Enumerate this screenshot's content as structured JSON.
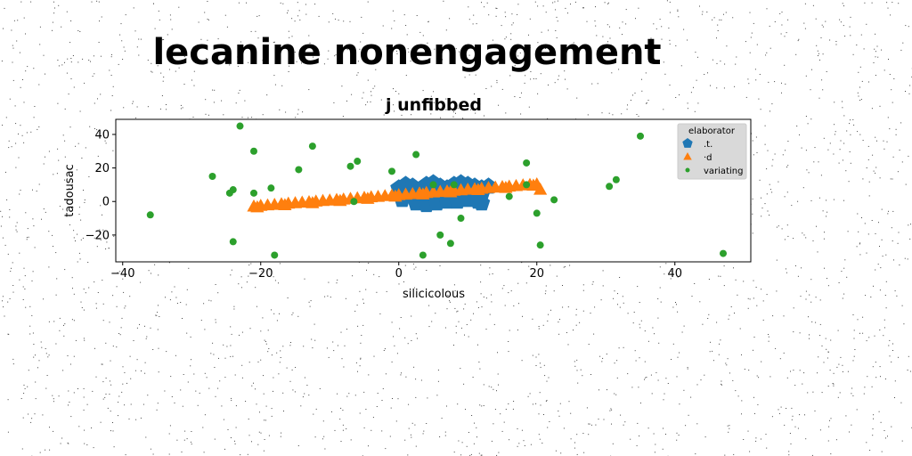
{
  "figure": {
    "title": "lecanine nonengagement"
  },
  "chart_data": {
    "type": "scatter",
    "title": "j unfibbed",
    "xlabel": "silicicolous",
    "ylabel": "tadousac",
    "xlim": [
      -41,
      51
    ],
    "ylim": [
      -36,
      49
    ],
    "xticks": [
      -40,
      -20,
      0,
      20,
      40
    ],
    "yticks": [
      -20,
      0,
      20,
      40
    ],
    "grid": false,
    "legend": {
      "title": "elaborator",
      "placement": "upper right"
    },
    "series": [
      {
        "name": ".t.",
        "marker": "pentagon",
        "color": "#1f77b4",
        "points": [
          [
            0,
            8
          ],
          [
            1,
            10
          ],
          [
            2,
            9
          ],
          [
            3,
            7
          ],
          [
            4,
            10
          ],
          [
            5,
            11
          ],
          [
            6,
            9
          ],
          [
            7,
            8
          ],
          [
            8,
            10
          ],
          [
            9,
            11
          ],
          [
            10,
            10
          ],
          [
            11,
            9
          ],
          [
            12,
            8
          ],
          [
            13,
            9
          ],
          [
            1,
            4
          ],
          [
            2,
            4
          ],
          [
            3,
            3
          ],
          [
            4,
            4
          ],
          [
            5,
            3
          ],
          [
            6,
            4
          ],
          [
            7,
            4
          ],
          [
            8,
            5
          ],
          [
            9,
            5
          ],
          [
            10,
            4
          ],
          [
            11,
            5
          ],
          [
            12,
            4
          ],
          [
            0.5,
            1
          ],
          [
            2.5,
            -1
          ],
          [
            4,
            -2
          ],
          [
            5.5,
            -1
          ],
          [
            7,
            0
          ],
          [
            8.5,
            0
          ],
          [
            10,
            1
          ],
          [
            11.5,
            0
          ],
          [
            12,
            -1
          ]
        ]
      },
      {
        "name": "·d",
        "marker": "triangle",
        "color": "#ff7f0e",
        "points": [
          [
            -21,
            -3
          ],
          [
            -20,
            -2.6
          ],
          [
            -19,
            -2.3
          ],
          [
            -18,
            -2
          ],
          [
            -17,
            -1.6
          ],
          [
            -16,
            -1.3
          ],
          [
            -15,
            -1
          ],
          [
            -14,
            -0.7
          ],
          [
            -13,
            -0.4
          ],
          [
            -12,
            0
          ],
          [
            -11,
            0.3
          ],
          [
            -10,
            0.6
          ],
          [
            -9,
            0.9
          ],
          [
            -8,
            1.2
          ],
          [
            -7,
            1.6
          ],
          [
            -6,
            1.9
          ],
          [
            -5,
            2.2
          ],
          [
            -4,
            2.5
          ],
          [
            -3,
            2.8
          ],
          [
            -2,
            3.2
          ],
          [
            -1,
            3.5
          ],
          [
            0,
            3.8
          ],
          [
            1,
            4.1
          ],
          [
            2,
            4.4
          ],
          [
            3,
            4.8
          ],
          [
            4,
            5.1
          ],
          [
            5,
            5.4
          ],
          [
            6,
            5.7
          ],
          [
            7,
            6
          ],
          [
            8,
            6.4
          ],
          [
            9,
            6.7
          ],
          [
            10,
            7
          ],
          [
            11,
            7.3
          ],
          [
            12,
            7.6
          ],
          [
            13,
            8
          ],
          [
            14,
            8.3
          ],
          [
            15,
            8.6
          ],
          [
            16,
            8.9
          ],
          [
            17,
            9.2
          ],
          [
            18,
            9.6
          ],
          [
            19,
            9.9
          ],
          [
            20,
            10.2
          ],
          [
            -20.5,
            -3.5
          ],
          [
            -16.5,
            -2.2
          ],
          [
            -12.5,
            -1
          ],
          [
            -8.5,
            0.3
          ],
          [
            -4.5,
            1.6
          ],
          [
            -0.5,
            2.9
          ],
          [
            3.5,
            4.2
          ],
          [
            7.5,
            5.5
          ],
          [
            11.5,
            6.8
          ],
          [
            15.5,
            8.1
          ],
          [
            19.5,
            9.4
          ],
          [
            20.5,
            7
          ]
        ]
      },
      {
        "name": "variating",
        "marker": "circle",
        "color": "#2ca02c",
        "points": [
          [
            -36,
            -8
          ],
          [
            -27,
            15
          ],
          [
            -24.5,
            5
          ],
          [
            -24,
            7
          ],
          [
            -24,
            -24
          ],
          [
            -23,
            45
          ],
          [
            -21,
            30
          ],
          [
            -21,
            5
          ],
          [
            -18.5,
            8
          ],
          [
            -18,
            -32
          ],
          [
            -14.5,
            19
          ],
          [
            -12.5,
            33
          ],
          [
            -7,
            21
          ],
          [
            -6,
            24
          ],
          [
            -6.5,
            0
          ],
          [
            -1,
            18
          ],
          [
            2.5,
            28
          ],
          [
            3.5,
            -32
          ],
          [
            5,
            10
          ],
          [
            6,
            -20
          ],
          [
            7.5,
            -25
          ],
          [
            8,
            10
          ],
          [
            9,
            -10
          ],
          [
            16,
            3
          ],
          [
            18.5,
            23
          ],
          [
            18.5,
            10
          ],
          [
            20,
            -7
          ],
          [
            20.5,
            -26
          ],
          [
            22.5,
            1
          ],
          [
            30.5,
            9
          ],
          [
            31.5,
            13
          ],
          [
            35,
            39
          ],
          [
            47,
            -31
          ]
        ]
      }
    ]
  }
}
